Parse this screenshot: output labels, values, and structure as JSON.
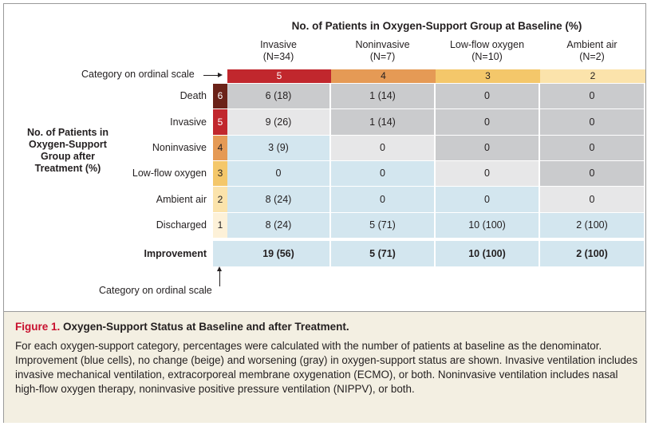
{
  "title": "No. of Patients in Oxygen-Support Group at Baseline (%)",
  "columns": [
    {
      "name": "Invasive",
      "n": "(N=34)",
      "category": "5"
    },
    {
      "name": "Noninvasive",
      "n": "(N=7)",
      "category": "4"
    },
    {
      "name": "Low-flow oxygen",
      "n": "(N=10)",
      "category": "3"
    },
    {
      "name": "Ambient air",
      "n": "(N=2)",
      "category": "2"
    }
  ],
  "ordinal_label_top": "Category on ordinal scale",
  "ordinal_label_bottom": "Category on ordinal scale",
  "left_label": "No. of Patients in Oxygen-Support Group after Treatment (%)",
  "rows": [
    {
      "label": "Death",
      "category": "6",
      "cells": [
        "6 (18)",
        "1 (14)",
        "0",
        "0"
      ]
    },
    {
      "label": "Invasive",
      "category": "5",
      "cells": [
        "9 (26)",
        "1 (14)",
        "0",
        "0"
      ]
    },
    {
      "label": "Noninvasive",
      "category": "4",
      "cells": [
        "3 (9)",
        "0",
        "0",
        "0"
      ]
    },
    {
      "label": "Low-flow oxygen",
      "category": "3",
      "cells": [
        "0",
        "0",
        "0",
        "0"
      ]
    },
    {
      "label": "Ambient air",
      "category": "2",
      "cells": [
        "8 (24)",
        "0",
        "0",
        "0"
      ]
    },
    {
      "label": "Discharged",
      "category": "1",
      "cells": [
        "8 (24)",
        "5 (71)",
        "10 (100)",
        "2 (100)"
      ]
    }
  ],
  "improvement": {
    "label": "Improvement",
    "cells": [
      "19 (56)",
      "5 (71)",
      "10 (100)",
      "2 (100)"
    ]
  },
  "cell_status": [
    [
      "worse",
      "worse",
      "worse",
      "worse"
    ],
    [
      "same",
      "worse",
      "worse",
      "worse"
    ],
    [
      "improved",
      "same",
      "worse",
      "worse"
    ],
    [
      "improved",
      "improved",
      "same",
      "worse"
    ],
    [
      "improved",
      "improved",
      "improved",
      "same"
    ],
    [
      "improved",
      "improved",
      "improved",
      "improved"
    ]
  ],
  "colors": {
    "worse": "#cacbcd",
    "same": "#e7e7e8",
    "improved": "#d3e6ef",
    "cat6": "#6b2218",
    "cat5": "#c1272d",
    "cat4": "#e59a55",
    "cat3": "#f4c76a",
    "cat2": "#fbe3ab",
    "cat1": "#fdf1d8"
  },
  "caption": {
    "figure_label": "Figure 1.",
    "title": "Oxygen-Support Status at Baseline and after Treatment.",
    "text": "For each oxygen-support category, percentages were calculated with the number of patients at baseline as the denominator. Improvement (blue cells), no change (beige) and worsening (gray) in oxygen-support status are shown. Invasive ventilation includes invasive mechanical ventilation, extracorporeal membrane oxygenation (ECMO), or both. Noninvasive ventilation includes nasal high-flow oxygen therapy, noninvasive positive pressure ventilation (NIPPV), or both."
  }
}
